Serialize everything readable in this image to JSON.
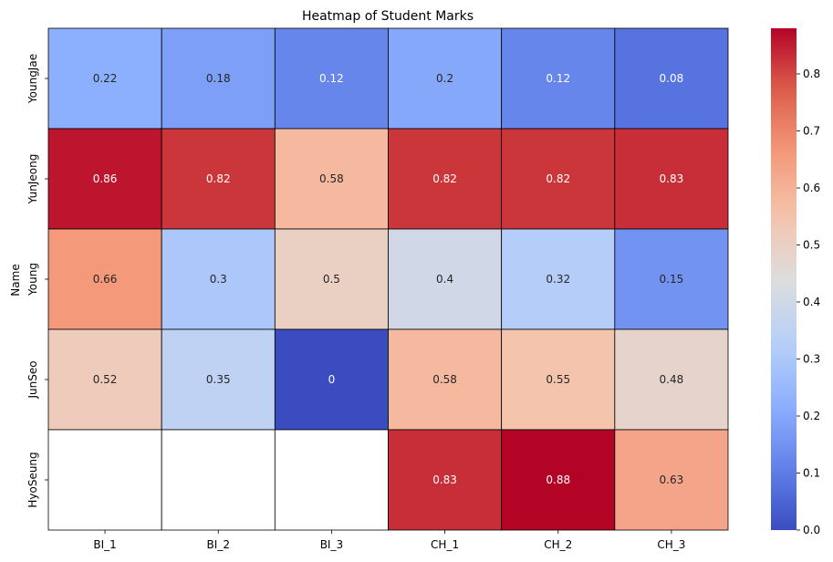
{
  "chart_data": {
    "type": "heatmap",
    "title": "Heatmap of Student Marks",
    "xlabel": "",
    "ylabel": "Name",
    "x_categories": [
      "BI_1",
      "BI_2",
      "BI_3",
      "CH_1",
      "CH_2",
      "CH_3"
    ],
    "y_categories": [
      "YoungJae",
      "YunJeong",
      "Young",
      "JunSeo",
      "HyoSeung"
    ],
    "values": [
      [
        0.22,
        0.18,
        0.12,
        0.2,
        0.12,
        0.08
      ],
      [
        0.86,
        0.82,
        0.58,
        0.82,
        0.82,
        0.83
      ],
      [
        0.66,
        0.3,
        0.5,
        0.4,
        0.32,
        0.15
      ],
      [
        0.52,
        0.35,
        0,
        0.58,
        0.55,
        0.48
      ],
      [
        null,
        null,
        null,
        0.83,
        0.88,
        0.63
      ]
    ],
    "value_labels": [
      [
        "0.22",
        "0.18",
        "0.12",
        "0.2",
        "0.12",
        "0.08"
      ],
      [
        "0.86",
        "0.82",
        "0.58",
        "0.82",
        "0.82",
        "0.83"
      ],
      [
        "0.66",
        "0.3",
        "0.5",
        "0.4",
        "0.32",
        "0.15"
      ],
      [
        "0.52",
        "0.35",
        "0",
        "0.58",
        "0.55",
        "0.48"
      ],
      [
        "",
        "",
        "",
        "0.83",
        "0.88",
        "0.63"
      ]
    ],
    "colormap": "coolwarm",
    "vmin": 0,
    "vmax": 0.88,
    "colorbar_ticks": [
      "0.0",
      "0.1",
      "0.2",
      "0.3",
      "0.4",
      "0.5",
      "0.6",
      "0.7",
      "0.8"
    ],
    "cell_border_color": "#000000",
    "missing_color": "#ffffff"
  }
}
